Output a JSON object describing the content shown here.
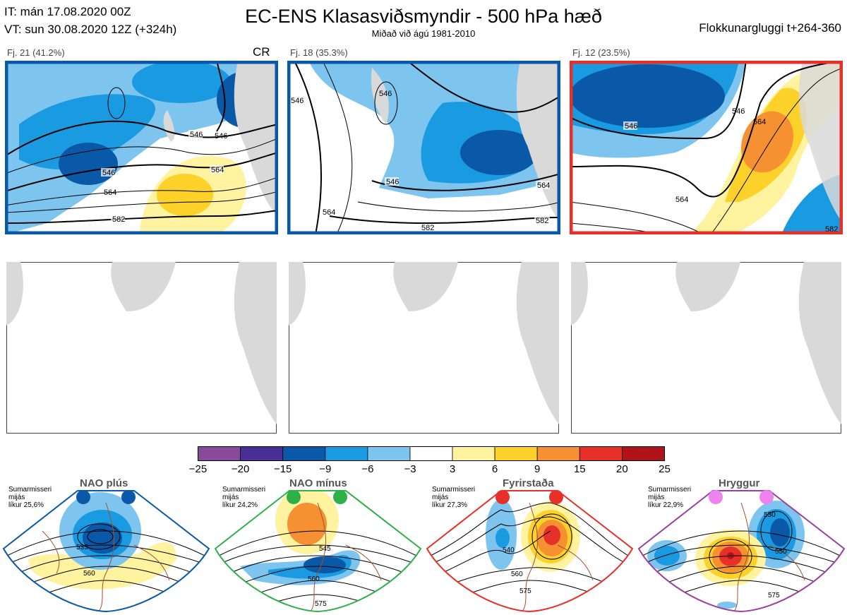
{
  "header": {
    "it_line": "IT: mán 17.08.2020 00Z",
    "vt_line": "VT: sun 30.08.2020 12Z  (+324h)",
    "title": "EC-ENS Klasasviðsmyndir - 500 hPa hæð",
    "subtitle": "Miðað við ágú 1981-2010",
    "window": "Flokkunargluggi t+264-360"
  },
  "clusters": [
    {
      "label": "Fj. 21 (41.2%)",
      "border_color": "#0a58a8",
      "tag": "CR",
      "contours": [
        "546",
        "546",
        "546",
        "564",
        "564",
        "582"
      ]
    },
    {
      "label": "Fj. 18 (35.3%)",
      "border_color": "#0a58a8",
      "contours": [
        "546",
        "546",
        "546",
        "564",
        "564",
        "582",
        "582"
      ]
    },
    {
      "label": "Fj. 12 (23.5%)",
      "border_color": "#e8302a",
      "contours": [
        "546",
        "546",
        "564",
        "564",
        "582"
      ]
    }
  ],
  "colorbar": {
    "ticks": [
      "−25",
      "−20",
      "−15",
      "−9",
      "−6",
      "−3",
      "3",
      "6",
      "9",
      "15",
      "20",
      "25"
    ],
    "colors": [
      "#8a4a9c",
      "#4a2f97",
      "#0a58a8",
      "#1a9ae0",
      "#7dc4ee",
      "#ffffff",
      "#fff3a0",
      "#fcd22a",
      "#f59033",
      "#e8302a",
      "#b01318"
    ]
  },
  "regimes": [
    {
      "name": "NAO plús",
      "season": "Sumarmisseri",
      "avg": "mijás",
      "prob": "líkur 25,6%",
      "color": "#0a58a8",
      "contours": [
        "535",
        "560"
      ]
    },
    {
      "name": "NAO mínus",
      "season": "Sumarmisseri",
      "avg": "mijás",
      "prob": "líkur 24,2%",
      "color": "#2fb14a",
      "contours": [
        "545",
        "560",
        "575"
      ]
    },
    {
      "name": "Fyrirstaða",
      "season": "Sumarmisseri",
      "avg": "mijás",
      "prob": "líkur 27,3%",
      "color": "#e8302a",
      "contours": [
        "540",
        "560",
        "575"
      ]
    },
    {
      "name": "Hryggur",
      "season": "Sumarmisseri",
      "avg": "mijás",
      "prob": "líkur 22,9%",
      "color": "#9b3fa0",
      "dot_color": "#ee82ee",
      "contours": [
        "530",
        "550",
        "575"
      ]
    }
  ]
}
